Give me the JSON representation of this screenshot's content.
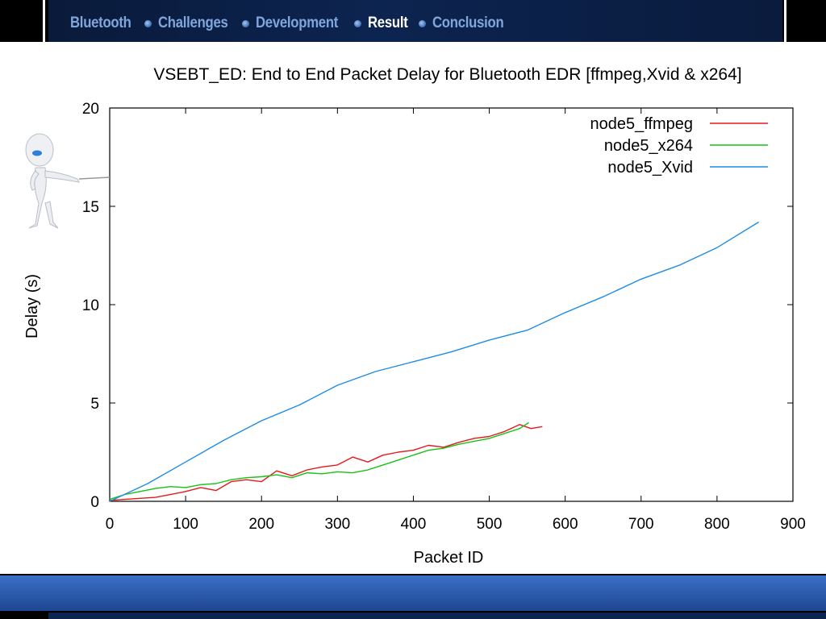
{
  "nav": {
    "items": [
      {
        "label": "Bluetooth",
        "active": false
      },
      {
        "label": "Challenges",
        "active": false
      },
      {
        "label": "Development",
        "active": false
      },
      {
        "label": "Result",
        "active": true
      },
      {
        "label": "Conclusion",
        "active": false
      }
    ]
  },
  "colors": {
    "nav_inactive": "#7fa7de",
    "nav_active": "#ffffff",
    "ffmpeg": "#e41a1c",
    "x264": "#17c217",
    "xvid": "#1e8ce6"
  },
  "presenter_icon": "stick-figure-pointer-icon",
  "chart_data": {
    "type": "line",
    "title": "VSEBT_ED: End to End Packet Delay for Bluetooth EDR [ffmpeg,Xvid & x264]",
    "xlabel": "Packet ID",
    "ylabel": "Delay (s)",
    "xlim": [
      0,
      900
    ],
    "ylim": [
      0,
      20
    ],
    "xticks": [
      "0",
      "100",
      "200",
      "300",
      "400",
      "500",
      "600",
      "700",
      "800",
      "900"
    ],
    "yticks": [
      "0",
      "5",
      "10",
      "15",
      "20"
    ],
    "legend_position": "top-right",
    "grid": false,
    "series": [
      {
        "name": "node5_ffmpeg",
        "color": "#e41a1c",
        "x": [
          0,
          20,
          40,
          60,
          80,
          100,
          120,
          140,
          160,
          180,
          200,
          220,
          240,
          260,
          280,
          300,
          320,
          340,
          360,
          380,
          400,
          420,
          440,
          460,
          480,
          500,
          520,
          540,
          555,
          570
        ],
        "y": [
          0.05,
          0.1,
          0.15,
          0.2,
          0.35,
          0.5,
          0.7,
          0.55,
          1.0,
          1.1,
          1.0,
          1.55,
          1.3,
          1.6,
          1.75,
          1.85,
          2.25,
          2.0,
          2.35,
          2.5,
          2.6,
          2.85,
          2.75,
          3.0,
          3.2,
          3.3,
          3.55,
          3.9,
          3.7,
          3.8
        ]
      },
      {
        "name": "node5_x264",
        "color": "#17c217",
        "x": [
          0,
          20,
          40,
          60,
          80,
          100,
          120,
          140,
          160,
          180,
          200,
          220,
          240,
          260,
          280,
          300,
          320,
          340,
          360,
          380,
          400,
          420,
          440,
          460,
          480,
          500,
          520,
          540,
          552
        ],
        "y": [
          0.1,
          0.35,
          0.5,
          0.65,
          0.75,
          0.7,
          0.85,
          0.9,
          1.1,
          1.2,
          1.25,
          1.35,
          1.2,
          1.45,
          1.4,
          1.5,
          1.45,
          1.6,
          1.85,
          2.1,
          2.35,
          2.6,
          2.7,
          2.9,
          3.05,
          3.2,
          3.45,
          3.7,
          4.0
        ]
      },
      {
        "name": "node5_Xvid",
        "color": "#1e8ce6",
        "x": [
          0,
          50,
          100,
          150,
          200,
          250,
          300,
          350,
          400,
          450,
          500,
          550,
          600,
          650,
          700,
          750,
          800,
          855
        ],
        "y": [
          0.0,
          0.9,
          2.0,
          3.1,
          4.1,
          4.9,
          5.9,
          6.6,
          7.1,
          7.6,
          8.2,
          8.7,
          9.6,
          10.4,
          11.3,
          12.0,
          12.9,
          14.2
        ]
      }
    ]
  }
}
